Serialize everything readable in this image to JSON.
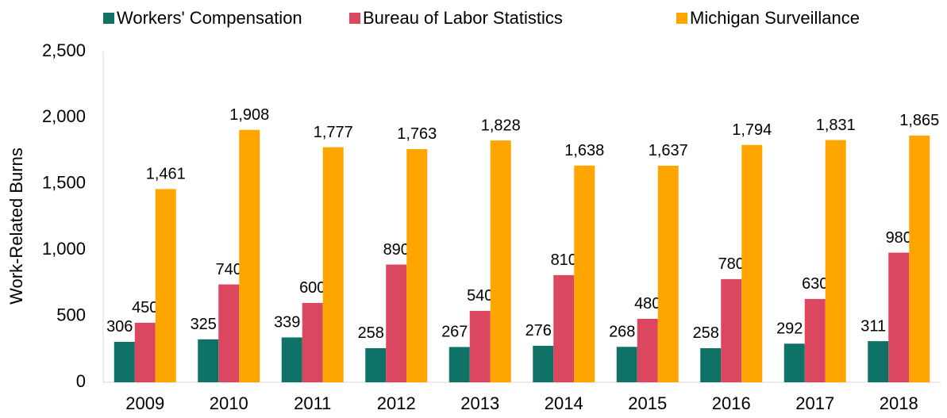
{
  "chart_data": {
    "type": "bar",
    "y_label": "Work-Related Burns",
    "categories": [
      "2009",
      "2010",
      "2011",
      "2012",
      "2013",
      "2014",
      "2015",
      "2016",
      "2017",
      "2018"
    ],
    "series": [
      {
        "name": "Workers' Compensation",
        "color": "#0e7366",
        "values": [
          306,
          325,
          339,
          258,
          267,
          276,
          268,
          258,
          292,
          311
        ]
      },
      {
        "name": "Bureau of Labor Statistics",
        "color": "#dc4760",
        "values": [
          450,
          740,
          600,
          890,
          540,
          810,
          480,
          780,
          630,
          980
        ]
      },
      {
        "name": "Michigan Surveillance",
        "color": "#ffa500",
        "values": [
          1461,
          1908,
          1777,
          1763,
          1828,
          1638,
          1637,
          1794,
          1831,
          1865
        ],
        "value_labels": [
          "1,461",
          "1,908",
          "1,777",
          "1,763",
          "1,828",
          "1,638",
          "1,637",
          "1,794",
          "1,831",
          "1,865"
        ]
      }
    ],
    "ylim": [
      0,
      2500
    ],
    "yticks": [
      0,
      500,
      {
        "value": 1000,
        "label": "1,000"
      },
      {
        "value": 1500,
        "label": "1,500"
      },
      {
        "value": 2000,
        "label": "2,000"
      },
      {
        "value": 2500,
        "label": "2,500"
      }
    ],
    "legend": "top"
  }
}
